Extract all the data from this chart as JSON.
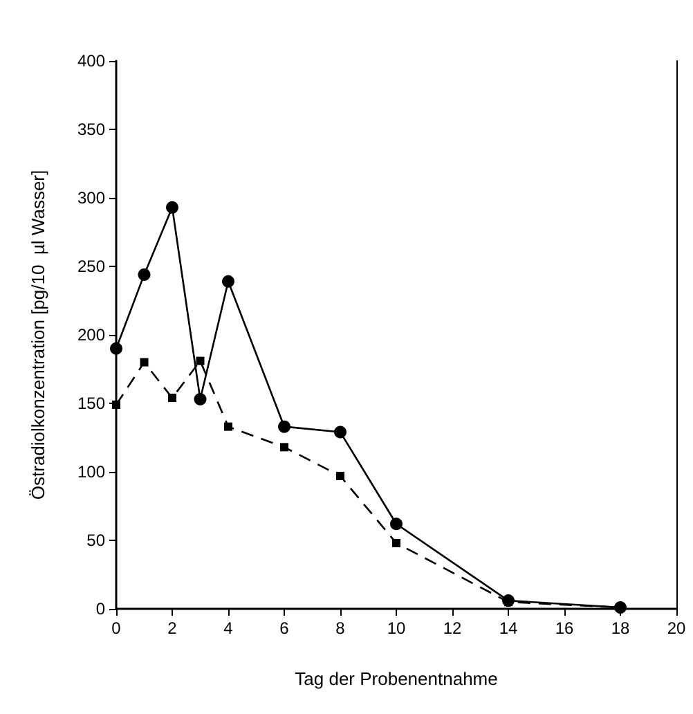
{
  "chart_data": {
    "type": "line",
    "xlabel": "Tag der Probenentnahme",
    "ylabel": "Östradiolkonzentration [pg/10  µl Wasser]",
    "x": [
      0,
      1,
      2,
      3,
      4,
      6,
      8,
      10,
      14,
      18
    ],
    "series": [
      {
        "color": "#000000",
        "marker": "circle",
        "line_style": "solid",
        "values": [
          190,
          244,
          293,
          153,
          239,
          133,
          129,
          62,
          6,
          1
        ]
      },
      {
        "color": "#000000",
        "marker": "square",
        "line_style": "dashed",
        "values": [
          149,
          180,
          154,
          181,
          133,
          118,
          97,
          48,
          5,
          1
        ]
      }
    ],
    "xlim": [
      0,
      20
    ],
    "xticks": [
      0,
      2,
      4,
      6,
      8,
      10,
      12,
      14,
      16,
      18,
      20
    ],
    "ylim": [
      0,
      400
    ],
    "yticks": [
      0,
      50,
      100,
      150,
      200,
      250,
      300,
      350,
      400
    ],
    "grid": false
  }
}
